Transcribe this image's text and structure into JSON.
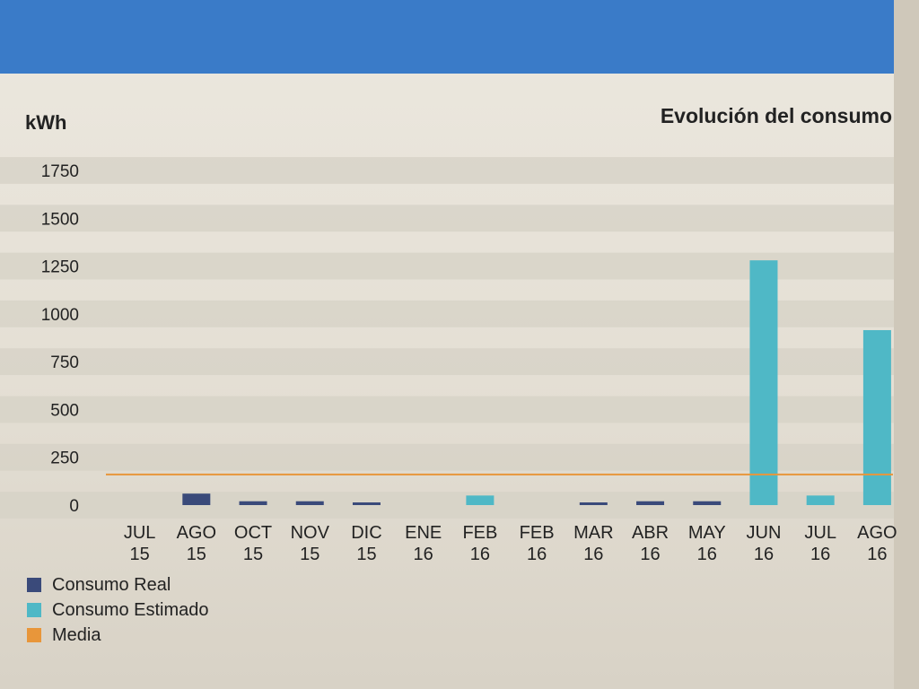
{
  "header": {
    "band_color": "#3a7bc8"
  },
  "chart_data": {
    "type": "bar",
    "title": "Evolución del consumo",
    "ylabel": "kWh",
    "ylim": [
      0,
      1750
    ],
    "yticks": [
      0,
      250,
      500,
      750,
      1000,
      1250,
      1500,
      1750
    ],
    "grid": true,
    "categories": [
      [
        "JUL",
        "15"
      ],
      [
        "AGO",
        "15"
      ],
      [
        "OCT",
        "15"
      ],
      [
        "NOV",
        "15"
      ],
      [
        "DIC",
        "15"
      ],
      [
        "ENE",
        "16"
      ],
      [
        "FEB",
        "16"
      ],
      [
        "FEB",
        "16"
      ],
      [
        "MAR",
        "16"
      ],
      [
        "ABR",
        "16"
      ],
      [
        "MAY",
        "16"
      ],
      [
        "JUN",
        "16"
      ],
      [
        "JUL",
        "16"
      ],
      [
        "AGO",
        "16"
      ]
    ],
    "series": [
      {
        "name": "Consumo Real",
        "color": "#3a4a7a",
        "values": [
          0,
          60,
          20,
          20,
          10,
          0,
          0,
          0,
          10,
          20,
          20,
          0,
          0,
          0
        ]
      },
      {
        "name": "Consumo Estimado",
        "color": "#4fb8c6",
        "values": [
          0,
          0,
          0,
          0,
          0,
          0,
          50,
          0,
          0,
          0,
          0,
          1280,
          50,
          915
        ]
      },
      {
        "name": "Media",
        "type": "line",
        "color": "#e8963a",
        "value": 160
      }
    ],
    "legend": "bottom-left"
  }
}
